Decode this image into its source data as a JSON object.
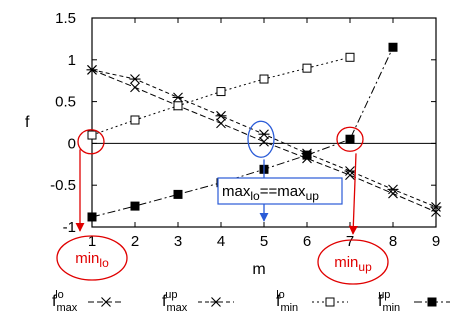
{
  "chart_data": {
    "type": "line",
    "xlabel": "m",
    "ylabel": "f",
    "x": [
      1,
      2,
      3,
      4,
      5,
      6,
      7,
      8,
      9
    ],
    "xlim": [
      1,
      9
    ],
    "ylim": [
      -1,
      1.5
    ],
    "xticks": [
      "1",
      "2",
      "3",
      "4",
      "5",
      "6",
      "7",
      "8",
      "9"
    ],
    "yticks": [
      "-1",
      "-0.5",
      "0",
      "0.5",
      "1",
      "1.5"
    ],
    "series": [
      {
        "name_main": "f",
        "name_sub": "max",
        "name_sup": "lo",
        "color": "#000000",
        "marker": "x",
        "dash": "6,3",
        "x": [
          1,
          2,
          3,
          4,
          5,
          6,
          7,
          8,
          9
        ],
        "y": [
          0.88,
          0.67,
          0.45,
          0.24,
          0.02,
          -0.18,
          -0.38,
          -0.6,
          -0.82
        ]
      },
      {
        "name_main": "f",
        "name_sub": "max",
        "name_sup": "up",
        "color": "#000000",
        "marker": "star",
        "dash": "4,3",
        "x": [
          1,
          2,
          3,
          4,
          5,
          6,
          7,
          8,
          9
        ],
        "y": [
          0.88,
          0.77,
          0.55,
          0.33,
          0.11,
          -0.12,
          -0.33,
          -0.55,
          -0.76
        ]
      },
      {
        "name_main": "f",
        "name_sub": "min",
        "name_sup": "lo",
        "color": "#000000",
        "marker": "open-square",
        "dash": "2,3",
        "x": [
          1,
          2,
          3,
          4,
          5,
          6,
          7
        ],
        "y": [
          0.1,
          0.28,
          0.45,
          0.62,
          0.77,
          0.9,
          1.03
        ]
      },
      {
        "name_main": "f",
        "name_sub": "min",
        "name_sup": "up",
        "color": "#000000",
        "marker": "filled-square",
        "dash": "8,3,2,3",
        "x": [
          1,
          2,
          3,
          4,
          5,
          6,
          7,
          8
        ],
        "y": [
          -0.88,
          -0.75,
          -0.61,
          -0.47,
          -0.31,
          -0.14,
          0.05,
          1.15
        ]
      }
    ],
    "annotations": {
      "min_lo": {
        "main": "min",
        "sub": "lo",
        "color": "#e00000"
      },
      "min_up": {
        "main": "min",
        "sub": "up",
        "color": "#e00000"
      },
      "max_eq": {
        "left_main": "max",
        "left_sub": "lo",
        "op": "==",
        "right_main": "max",
        "right_sub": "up",
        "color": "#2a5bd7"
      }
    },
    "legend_position": "bottom",
    "grid": false
  }
}
